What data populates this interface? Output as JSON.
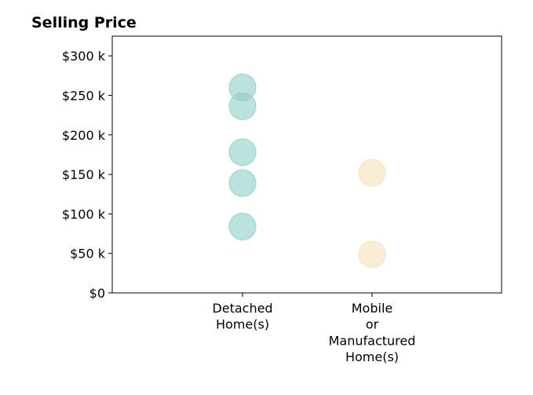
{
  "chart_data": {
    "type": "scatter",
    "title": "Selling Price",
    "xlabel": "",
    "ylabel": "",
    "categories": [
      "Detached Home(s)",
      "Mobile or Manufactured Home(s)"
    ],
    "category_tick_lines": [
      [
        "Detached",
        "Home(s)"
      ],
      [
        "Mobile",
        "or",
        "Manufactured",
        "Home(s)"
      ]
    ],
    "ylim": [
      0,
      325000
    ],
    "y_ticks": [
      0,
      50000,
      100000,
      150000,
      200000,
      250000,
      300000
    ],
    "y_tick_labels": [
      "$0",
      "$50 k",
      "$100 k",
      "$150 k",
      "$200 k",
      "$250 k",
      "$300 k"
    ],
    "grid": false,
    "series": [
      {
        "category": "Detached Home(s)",
        "color": "#8ecfc7",
        "values": [
          84000,
          139000,
          178000,
          236000,
          260000
        ]
      },
      {
        "category": "Mobile or Manufactured Home(s)",
        "color": "#f5e2b8",
        "values": [
          49000,
          152000
        ]
      }
    ]
  }
}
